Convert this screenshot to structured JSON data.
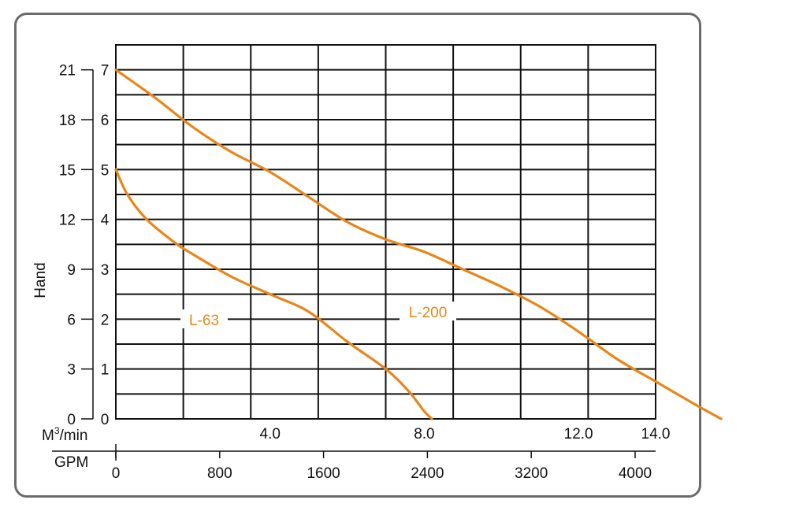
{
  "chart_data": {
    "type": "line",
    "ylabel": "Hand",
    "x_axes": [
      {
        "label": "M³/min",
        "label_base": "M",
        "label_sup": "3",
        "label_rest": "/min",
        "range": [
          0,
          14
        ],
        "ticks": [
          "4.0",
          "8.0",
          "12.0",
          "14.0"
        ],
        "tick_values": [
          4,
          8,
          12,
          14
        ]
      },
      {
        "label": "GPM",
        "range": [
          0,
          4158
        ],
        "ticks": [
          "0",
          "800",
          "1600",
          "2400",
          "3200",
          "4000"
        ],
        "tick_values": [
          0,
          800,
          1600,
          2400,
          3200,
          4000
        ]
      }
    ],
    "y_axes": [
      {
        "side": "inner",
        "range": [
          0,
          7.5
        ],
        "ticks": [
          "0",
          "1",
          "2",
          "3",
          "4",
          "5",
          "6",
          "7"
        ],
        "tick_values": [
          0,
          1,
          2,
          3,
          4,
          5,
          6,
          7
        ]
      },
      {
        "side": "outer",
        "range": [
          0,
          22.5
        ],
        "ticks": [
          "0",
          "3",
          "6",
          "9",
          "12",
          "15",
          "18",
          "21"
        ],
        "tick_values": [
          0,
          3,
          6,
          9,
          12,
          15,
          18,
          21
        ]
      }
    ],
    "grid": true,
    "series": [
      {
        "name": "L-63",
        "color": "#e8861a",
        "x": [
          0,
          0.3,
          0.8,
          1.5,
          2.0,
          3.0,
          4.0,
          5.0,
          6.0,
          7.0,
          7.6,
          8.0,
          8.2
        ],
        "y": [
          5.0,
          4.5,
          4.0,
          3.55,
          3.3,
          2.85,
          2.5,
          2.15,
          1.55,
          1.0,
          0.55,
          0.15,
          0.0
        ]
      },
      {
        "name": "L-200",
        "color": "#e8861a",
        "x": [
          0,
          1.0,
          2.0,
          3.0,
          4.0,
          5.0,
          6.0,
          7.0,
          8.0,
          9.0,
          10.0,
          11.0,
          12.0,
          13.0,
          14.0,
          15.0,
          15.7
        ],
        "y": [
          7.0,
          6.45,
          5.85,
          5.35,
          4.95,
          4.45,
          3.95,
          3.6,
          3.35,
          3.0,
          2.65,
          2.25,
          1.75,
          1.2,
          0.75,
          0.3,
          0.0
        ]
      }
    ]
  }
}
